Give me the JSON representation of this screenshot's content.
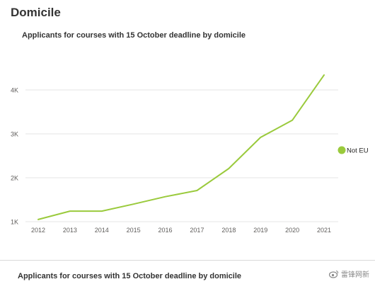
{
  "section": {
    "title": "Domicile"
  },
  "chart_data": {
    "type": "line",
    "title": "Applicants for courses with 15 October deadline by domicile",
    "xlabel": "",
    "ylabel": "",
    "x": [
      "2012",
      "2013",
      "2014",
      "2015",
      "2016",
      "2017",
      "2018",
      "2019",
      "2020",
      "2021"
    ],
    "series": [
      {
        "name": "Not EU",
        "values": [
          1050,
          1240,
          1240,
          1400,
          1570,
          1710,
          2210,
          2920,
          3310,
          4340
        ]
      }
    ],
    "ylim": [
      1000,
      4500
    ],
    "yticks": [
      1000,
      2000,
      3000,
      4000
    ],
    "ytick_labels": [
      "1K",
      "2K",
      "3K",
      "4K"
    ],
    "grid": true,
    "legend": "right",
    "colors": {
      "series": "#9ACA3C",
      "grid": "#e6e6e6",
      "axis_text": "#605e5c"
    }
  },
  "next_chart": {
    "title": "Applicants for courses with 15 October deadline  by domicile"
  },
  "watermark": {
    "text": "雷锋网新 "
  }
}
